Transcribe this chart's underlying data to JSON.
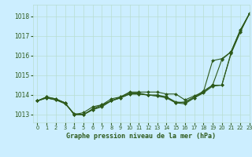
{
  "title": "Graphe pression niveau de la mer (hPa)",
  "background_color": "#cceeff",
  "grid_color": "#b8ddd0",
  "line_color": "#2d5a1b",
  "xlim": [
    -0.5,
    23
  ],
  "ylim": [
    1012.6,
    1018.6
  ],
  "yticks": [
    1013,
    1014,
    1015,
    1016,
    1017,
    1018
  ],
  "xticks": [
    0,
    1,
    2,
    3,
    4,
    5,
    6,
    7,
    8,
    9,
    10,
    11,
    12,
    13,
    14,
    15,
    16,
    17,
    18,
    19,
    20,
    21,
    22,
    23
  ],
  "series": [
    [
      1013.7,
      1013.9,
      1013.8,
      1013.6,
      1013.0,
      1013.1,
      1013.4,
      1013.5,
      1013.8,
      1013.9,
      1014.15,
      1014.15,
      1014.15,
      1014.15,
      1014.05,
      1014.05,
      1013.75,
      1013.95,
      1014.15,
      1015.75,
      1015.85,
      1016.2,
      1017.3,
      1018.15
    ],
    [
      1013.7,
      1013.85,
      1013.75,
      1013.6,
      1013.0,
      1013.0,
      1013.25,
      1013.45,
      1013.7,
      1013.85,
      1014.05,
      1014.05,
      1014.0,
      1013.95,
      1013.85,
      1013.6,
      1013.55,
      1013.85,
      1014.15,
      1014.5,
      1014.5,
      1016.15,
      1017.25,
      1018.15
    ],
    [
      1013.7,
      1013.85,
      1013.75,
      1013.55,
      1013.05,
      1013.0,
      1013.25,
      1013.4,
      1013.7,
      1013.85,
      1014.05,
      1014.05,
      1014.0,
      1013.95,
      1013.9,
      1013.65,
      1013.6,
      1013.85,
      1014.1,
      1014.45,
      1014.5,
      1016.1,
      1017.2,
      1018.15
    ],
    [
      1013.7,
      1013.9,
      1013.8,
      1013.6,
      1013.0,
      1013.0,
      1013.3,
      1013.5,
      1013.7,
      1013.9,
      1014.1,
      1014.1,
      1014.0,
      1014.0,
      1013.9,
      1013.6,
      1013.65,
      1013.9,
      1014.2,
      1014.5,
      1015.8,
      1016.2,
      1017.3,
      1018.15
    ]
  ]
}
